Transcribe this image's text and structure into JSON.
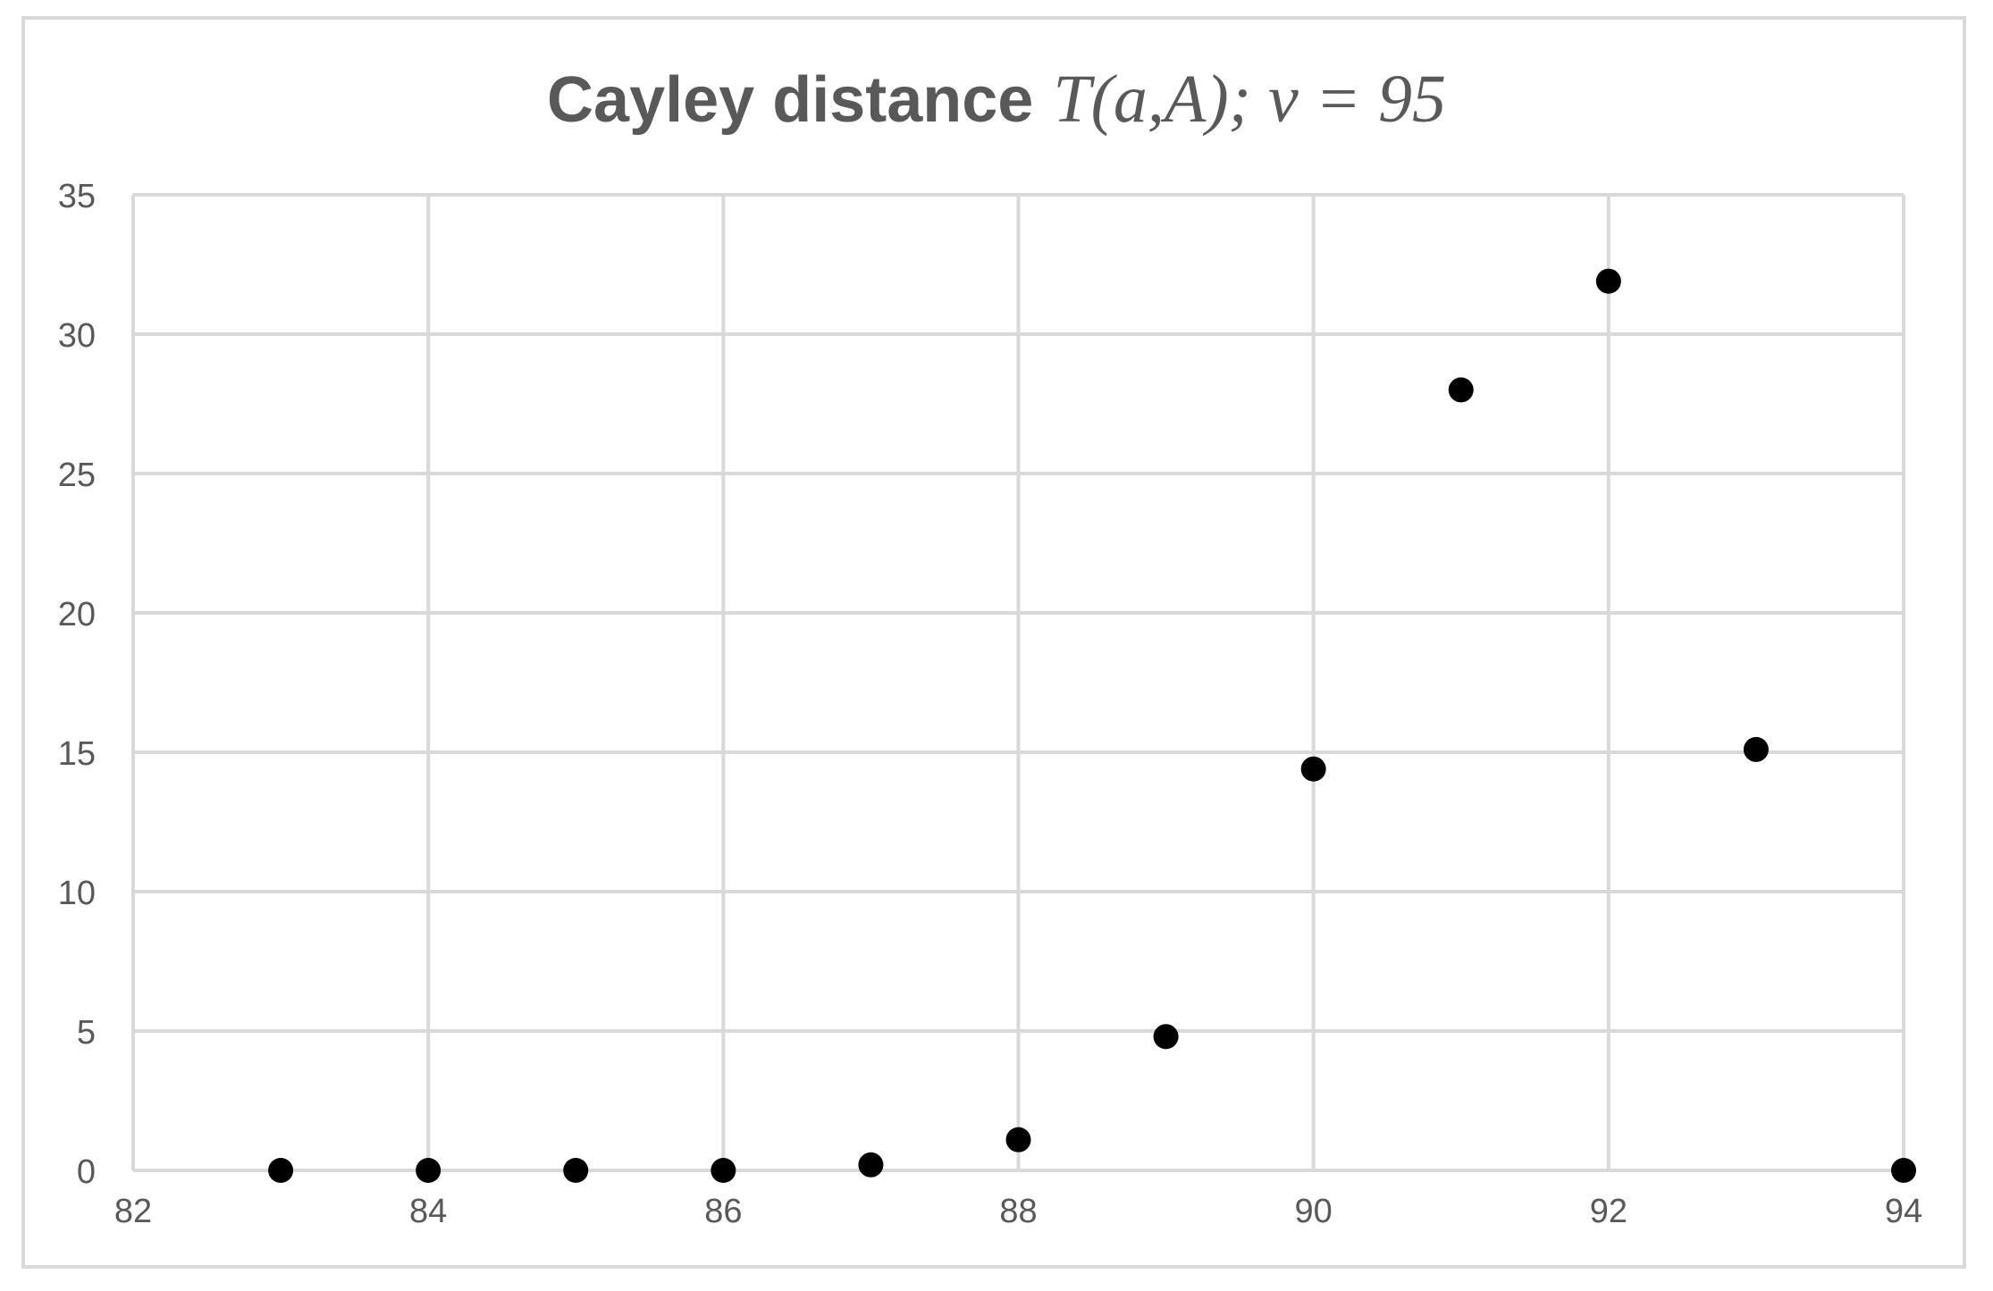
{
  "chart_data": {
    "type": "scatter",
    "title": {
      "main": "Cayley distance",
      "math": "T(a,A); v = 95"
    },
    "xlabel": "",
    "ylabel": "",
    "xlim": [
      82,
      94
    ],
    "ylim": [
      0,
      35
    ],
    "xticks": [
      82,
      84,
      86,
      88,
      90,
      92,
      94
    ],
    "yticks": [
      0,
      5,
      10,
      15,
      20,
      25,
      30,
      35
    ],
    "grid": true,
    "legend": "none",
    "series": [
      {
        "color": "#000000",
        "points": [
          {
            "x": 83,
            "y": 0
          },
          {
            "x": 84,
            "y": 0
          },
          {
            "x": 85,
            "y": 0
          },
          {
            "x": 86,
            "y": 0
          },
          {
            "x": 87,
            "y": 0.2
          },
          {
            "x": 88,
            "y": 1.1
          },
          {
            "x": 89,
            "y": 4.8
          },
          {
            "x": 90,
            "y": 14.4
          },
          {
            "x": 91,
            "y": 28
          },
          {
            "x": 92,
            "y": 31.9
          },
          {
            "x": 93,
            "y": 15.1
          },
          {
            "x": 94,
            "y": 0
          }
        ]
      }
    ],
    "colors": {
      "grid": "#d9d9d9",
      "text": "#595959",
      "marker": "#000000"
    }
  }
}
